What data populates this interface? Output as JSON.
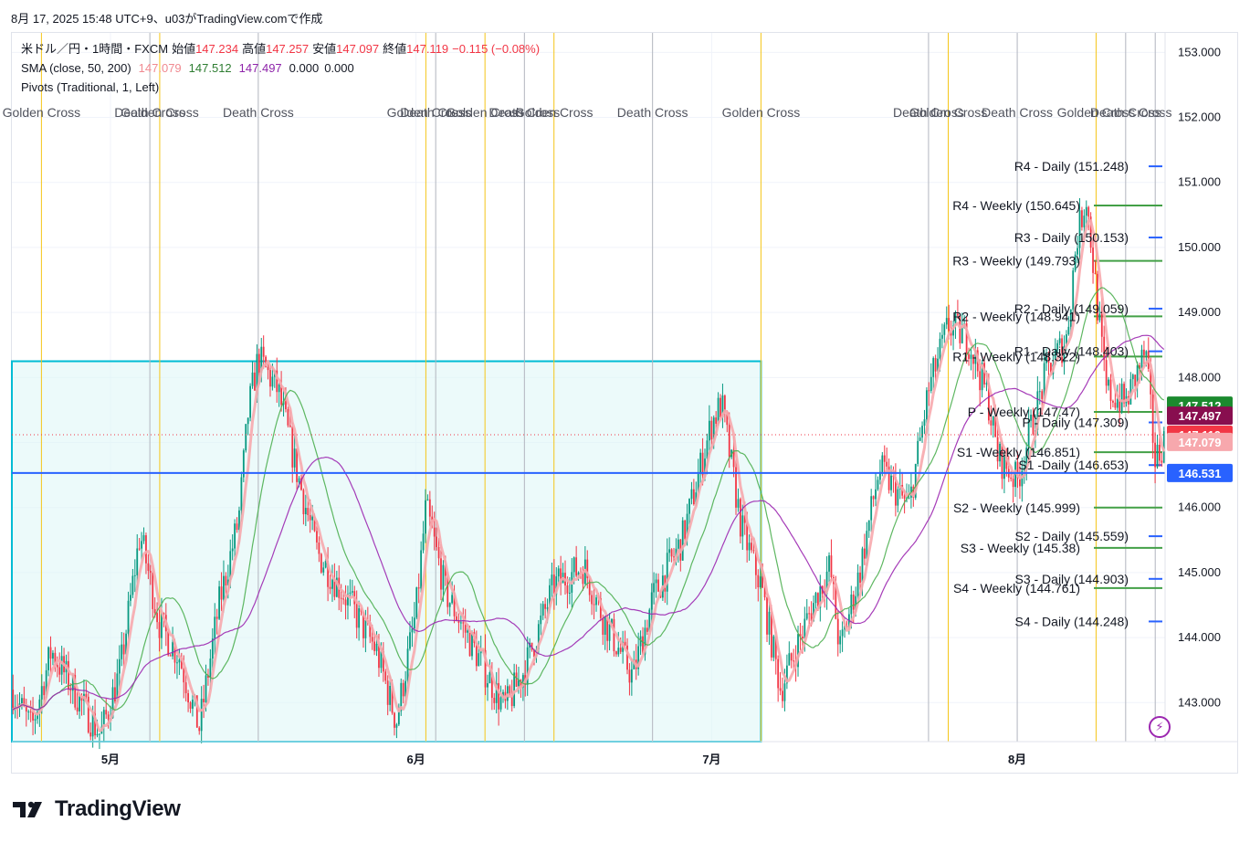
{
  "header": {
    "caption": "8月 17, 2025 15:48 UTC+9、u03がTradingView.comで作成"
  },
  "legend": {
    "symbol": "米ドル／円・1時間・FXCM",
    "open_label": "始値",
    "open": "147.234",
    "high_label": "高値",
    "high": "147.257",
    "low_label": "安値",
    "low": "147.097",
    "close_label": "終値",
    "close": "147.119",
    "change": "−0.115 (−0.08%)",
    "sma_label": "SMA (close, 50, 200)",
    "sma_v1": "147.079",
    "sma_v2": "147.512",
    "sma_v3": "147.497",
    "sma_v4": "0.000",
    "sma_v5": "0.000",
    "pivots_label": "Pivots (Traditional, 1, Left)"
  },
  "colors": {
    "up": "#089981",
    "down": "#f23645",
    "sma_fast": "#f7a8ad",
    "sma_mid": "#4caf50",
    "sma_slow": "#9c27b0",
    "daily_pivot": "#2962ff",
    "weekly_pivot": "#43a047",
    "cross_golden": "#f5c518",
    "cross_death": "#b2b5be",
    "rect_border": "#00bcd4",
    "rect_fill": "#e0f7f7",
    "hline": "#2962ff",
    "accent": "#131722"
  },
  "branding": {
    "logo_text": "TradingView",
    "logo_icon": "tradingview-logo-icon",
    "lightning_icon": "lightning-icon"
  },
  "chart_data": {
    "type": "candlestick",
    "interval": "1h",
    "ylim": [
      142.4,
      153.3
    ],
    "y_ticks": [
      "143.000",
      "144.000",
      "145.000",
      "146.000",
      "147.000",
      "148.000",
      "149.000",
      "150.000",
      "151.000",
      "152.000",
      "153.000"
    ],
    "y_tick_values": [
      143,
      144,
      145,
      146,
      147,
      148,
      149,
      150,
      151,
      152,
      153
    ],
    "x_ticks": [
      "5月",
      "6月",
      "7月",
      "8月"
    ],
    "x_tick_dates": [
      "2025-05-01",
      "2025-06-01",
      "2025-07-01",
      "2025-08-01"
    ],
    "x_range": [
      "2025-04-21",
      "2025-08-16"
    ],
    "price_path": [
      [
        "2025-04-21",
        143.2
      ],
      [
        "2025-04-23",
        142.6
      ],
      [
        "2025-04-25",
        143.8
      ],
      [
        "2025-04-28",
        143.0
      ],
      [
        "2025-04-30",
        142.5
      ],
      [
        "2025-05-02",
        143.5
      ],
      [
        "2025-05-04",
        145.6
      ],
      [
        "2025-05-06",
        144.2
      ],
      [
        "2025-05-08",
        143.7
      ],
      [
        "2025-05-10",
        142.6
      ],
      [
        "2025-05-12",
        144.5
      ],
      [
        "2025-05-14",
        145.8
      ],
      [
        "2025-05-15",
        147.5
      ],
      [
        "2025-05-16",
        148.3
      ],
      [
        "2025-05-18",
        147.8
      ],
      [
        "2025-05-20",
        146.5
      ],
      [
        "2025-05-22",
        145.3
      ],
      [
        "2025-05-25",
        144.6
      ],
      [
        "2025-05-28",
        143.8
      ],
      [
        "2025-05-30",
        142.7
      ],
      [
        "2025-06-01",
        144.4
      ],
      [
        "2025-06-02",
        146.0
      ],
      [
        "2025-06-04",
        144.7
      ],
      [
        "2025-06-07",
        143.8
      ],
      [
        "2025-06-10",
        142.9
      ],
      [
        "2025-06-12",
        143.5
      ],
      [
        "2025-06-15",
        144.8
      ],
      [
        "2025-06-18",
        145.1
      ],
      [
        "2025-06-20",
        144.3
      ],
      [
        "2025-06-23",
        143.4
      ],
      [
        "2025-06-25",
        144.6
      ],
      [
        "2025-06-28",
        145.5
      ],
      [
        "2025-07-01",
        147.3
      ],
      [
        "2025-07-02",
        147.6
      ],
      [
        "2025-07-04",
        145.7
      ],
      [
        "2025-07-06",
        144.8
      ],
      [
        "2025-07-08",
        143.2
      ],
      [
        "2025-07-09",
        143.6
      ],
      [
        "2025-07-11",
        144.4
      ],
      [
        "2025-07-13",
        145.1
      ],
      [
        "2025-07-14",
        143.8
      ],
      [
        "2025-07-16",
        145.0
      ],
      [
        "2025-07-18",
        146.6
      ],
      [
        "2025-07-21",
        146.0
      ],
      [
        "2025-07-23",
        147.8
      ],
      [
        "2025-07-25",
        148.8
      ],
      [
        "2025-07-27",
        148.6
      ],
      [
        "2025-07-29",
        147.7
      ],
      [
        "2025-07-30",
        146.8
      ],
      [
        "2025-08-01",
        146.4
      ],
      [
        "2025-08-02",
        147.0
      ],
      [
        "2025-08-04",
        148.1
      ],
      [
        "2025-08-06",
        148.6
      ],
      [
        "2025-08-07",
        150.1
      ],
      [
        "2025-08-08",
        150.8
      ],
      [
        "2025-08-09",
        149.3
      ],
      [
        "2025-08-10",
        147.8
      ],
      [
        "2025-08-12",
        147.6
      ],
      [
        "2025-08-13",
        148.0
      ],
      [
        "2025-08-14",
        148.4
      ],
      [
        "2025-08-15",
        146.7
      ],
      [
        "2025-08-16",
        147.1
      ]
    ],
    "series": [
      {
        "name": "SMA",
        "color": "sma_fast",
        "value": 147.079
      },
      {
        "name": "SMA",
        "color": "sma_mid",
        "value": 147.512
      },
      {
        "name": "SMA",
        "color": "sma_slow",
        "value": 147.497
      }
    ],
    "price_labels": [
      {
        "text": "147.512",
        "value": 147.512,
        "bg": "#1b8a2e"
      },
      {
        "text": "147.497",
        "value": 147.497,
        "bg": "#880e4f"
      },
      {
        "text": "147.119",
        "value": 147.119,
        "bg": "#f23645"
      },
      {
        "text": "147.079",
        "value": 147.079,
        "bg": "#f7a8ad"
      },
      {
        "text": "146.531",
        "value": 146.531,
        "bg": "#2962ff"
      }
    ],
    "horizontal_line": 146.531,
    "last_price_line": 147.119,
    "rectangle": {
      "from": "2025-04-21",
      "to": "2025-07-06",
      "top": 148.25,
      "bottom": 142.4
    },
    "pivots": [
      {
        "label": "R4 - Daily (151.248)",
        "value": 151.248,
        "kind": "daily"
      },
      {
        "label": "R4 - Weekly (150.645)",
        "value": 150.645,
        "kind": "weekly"
      },
      {
        "label": "R3 - Daily (150.153)",
        "value": 150.153,
        "kind": "daily"
      },
      {
        "label": "R3 - Weekly (149.793)",
        "value": 149.793,
        "kind": "weekly"
      },
      {
        "label": "R2 - Daily (149.059)",
        "value": 149.059,
        "kind": "daily"
      },
      {
        "label": "R2 - Weekly (148.941)",
        "value": 148.941,
        "kind": "weekly"
      },
      {
        "label": "R1 - Daily (148.403)",
        "value": 148.403,
        "kind": "daily"
      },
      {
        "label": "R1 - Weekly (148.322)",
        "value": 148.322,
        "kind": "weekly"
      },
      {
        "label": "P - Weekly (147.47)",
        "value": 147.47,
        "kind": "weekly"
      },
      {
        "label": "P - Daily (147.309)",
        "value": 147.309,
        "kind": "daily"
      },
      {
        "label": "S1 -Weekly (146.851)",
        "value": 146.851,
        "kind": "weekly"
      },
      {
        "label": "S1 -Daily (146.653)",
        "value": 146.653,
        "kind": "daily"
      },
      {
        "label": "S2 - Weekly (145.999)",
        "value": 145.999,
        "kind": "weekly"
      },
      {
        "label": "S2 - Daily (145.559)",
        "value": 145.559,
        "kind": "daily"
      },
      {
        "label": "S3 - Weekly (145.38)",
        "value": 145.38,
        "kind": "weekly"
      },
      {
        "label": "S3 - Daily (144.903)",
        "value": 144.903,
        "kind": "daily"
      },
      {
        "label": "S4 - Weekly (144.761)",
        "value": 144.761,
        "kind": "weekly"
      },
      {
        "label": "S4 - Daily (144.248)",
        "value": 144.248,
        "kind": "daily"
      }
    ],
    "cross_events": [
      {
        "label": "Golden Cross",
        "date": "2025-04-24",
        "kind": "golden"
      },
      {
        "label": "Death Cross",
        "date": "2025-05-05",
        "kind": "death"
      },
      {
        "label": "Golden Cross",
        "date": "2025-05-06",
        "kind": "golden"
      },
      {
        "label": "Death Cross",
        "date": "2025-05-16",
        "kind": "death"
      },
      {
        "label": "Golden Cross",
        "date": "2025-06-02",
        "kind": "golden"
      },
      {
        "label": "Death Cross",
        "date": "2025-06-03",
        "kind": "death"
      },
      {
        "label": "Golden Cross",
        "date": "2025-06-08",
        "kind": "golden"
      },
      {
        "label": "Death Cross",
        "date": "2025-06-12",
        "kind": "death"
      },
      {
        "label": "Golden Cross",
        "date": "2025-06-15",
        "kind": "golden"
      },
      {
        "label": "Death Cross",
        "date": "2025-06-25",
        "kind": "death"
      },
      {
        "label": "Golden Cross",
        "date": "2025-07-06",
        "kind": "golden"
      },
      {
        "label": "Death Cross",
        "date": "2025-07-23",
        "kind": "death"
      },
      {
        "label": "Golden Cross",
        "date": "2025-07-25",
        "kind": "golden"
      },
      {
        "label": "Death Cross",
        "date": "2025-08-01",
        "kind": "death"
      },
      {
        "label": "Golden Cross",
        "date": "2025-08-09",
        "kind": "golden"
      },
      {
        "label": "Death Cross",
        "date": "2025-08-12",
        "kind": "death"
      },
      {
        "label": "Cross",
        "date": "2025-08-15",
        "kind": "death"
      }
    ]
  }
}
